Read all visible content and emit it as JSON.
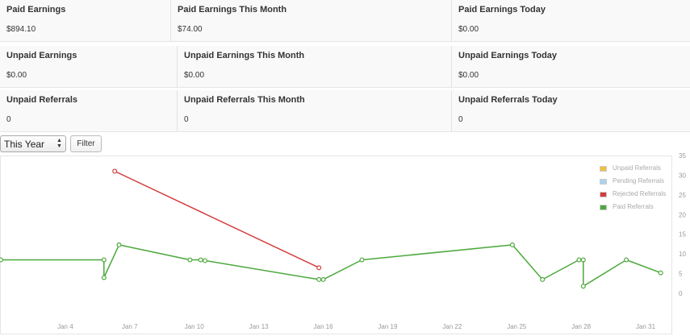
{
  "stats": [
    {
      "cells": [
        {
          "label": "Paid Earnings",
          "value": "$894.10"
        },
        {
          "label": "Paid Earnings This Month",
          "value": "$74.00"
        },
        {
          "label": "Paid Earnings Today",
          "value": "$0.00"
        }
      ]
    },
    {
      "cells": [
        {
          "label": "Unpaid Earnings",
          "value": "$0.00"
        },
        {
          "label": "Unpaid Earnings This Month",
          "value": "$0.00"
        },
        {
          "label": "Unpaid Earnings Today",
          "value": "$0.00"
        }
      ]
    },
    {
      "cells": [
        {
          "label": "Unpaid Referrals",
          "value": "0"
        },
        {
          "label": "Unpaid Referrals This Month",
          "value": "0"
        },
        {
          "label": "Unpaid Referrals Today",
          "value": "0"
        }
      ]
    }
  ],
  "controls": {
    "period_selected": "This Year",
    "filter_label": "Filter"
  },
  "chart_data": {
    "type": "line",
    "ylim": [
      0,
      35
    ],
    "yticks": [
      "0",
      "5",
      "10",
      "15",
      "20",
      "25",
      "30",
      "35"
    ],
    "xlim": [
      1,
      32.2
    ],
    "xticks": [
      {
        "x": 4,
        "label": "Jan 4"
      },
      {
        "x": 7,
        "label": "Jan 7"
      },
      {
        "x": 10,
        "label": "Jan 10"
      },
      {
        "x": 13,
        "label": "Jan 13"
      },
      {
        "x": 16,
        "label": "Jan 16"
      },
      {
        "x": 19,
        "label": "Jan 19"
      },
      {
        "x": 22,
        "label": "Jan 22"
      },
      {
        "x": 25,
        "label": "Jan 25"
      },
      {
        "x": 28,
        "label": "Jan 28"
      },
      {
        "x": 31,
        "label": "Jan 31"
      }
    ],
    "legend": [
      {
        "name": "Unpaid Referrals",
        "color": "#f0c040"
      },
      {
        "name": "Pending Referrals",
        "color": "#a8d4f0"
      },
      {
        "name": "Rejected Referrals",
        "color": "#d43c3c"
      },
      {
        "name": "Paid Referrals",
        "color": "#4ca83c"
      }
    ],
    "series": [
      {
        "name": "Rejected Referrals",
        "color": "#d43c3c",
        "points": [
          [
            6.3,
            31
          ],
          [
            15.8,
            6.5
          ]
        ]
      },
      {
        "name": "Paid Referrals",
        "color": "#4ca83c",
        "points": [
          [
            1,
            8.5
          ],
          [
            5.8,
            8.5
          ],
          [
            5.8,
            4
          ],
          [
            6.5,
            12.3
          ],
          [
            9.8,
            8.5
          ],
          [
            10.3,
            8.5
          ],
          [
            10.5,
            8.3
          ],
          [
            15.8,
            3.5
          ],
          [
            16,
            3.5
          ],
          [
            17.8,
            8.5
          ],
          [
            24.8,
            12.3
          ],
          [
            26.2,
            3.5
          ],
          [
            27.9,
            8.5
          ],
          [
            28.1,
            8.5
          ],
          [
            28.1,
            1.8
          ],
          [
            30.1,
            8.5
          ],
          [
            31.7,
            5.2
          ]
        ]
      }
    ]
  }
}
